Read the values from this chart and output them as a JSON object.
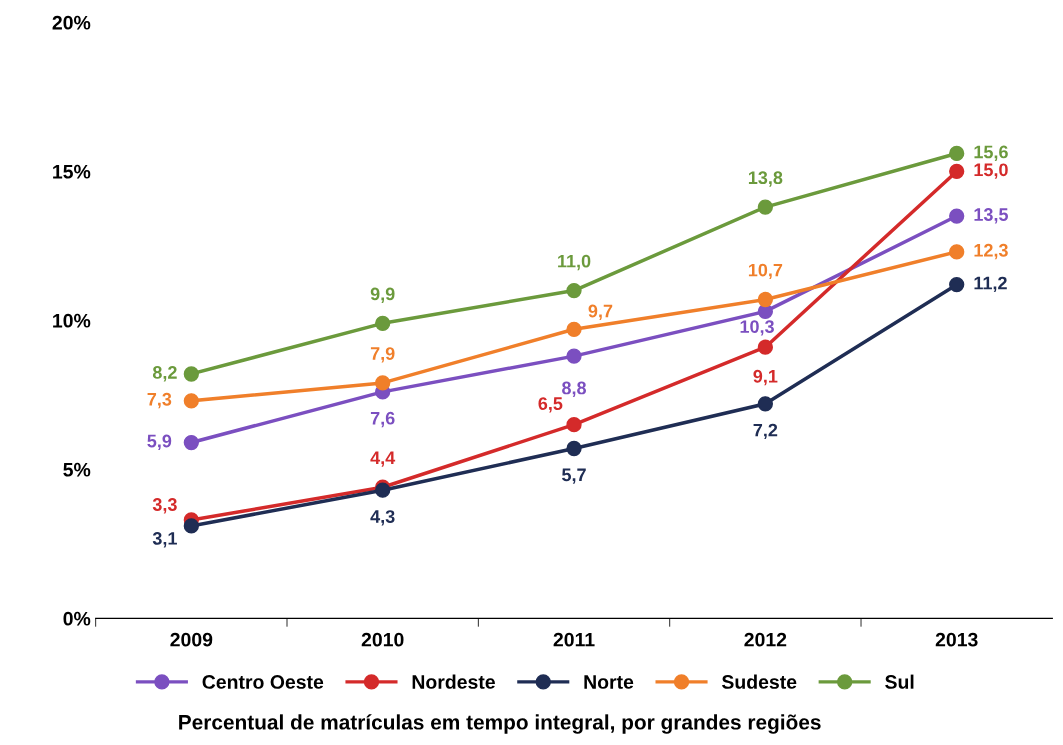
{
  "chart_data": {
    "type": "line",
    "title": "Percentual de matrículas em tempo integral, por grandes regiões",
    "categories": [
      "2009",
      "2010",
      "2011",
      "2012",
      "2013"
    ],
    "series": [
      {
        "name": "Centro Oeste",
        "color": "#7b4fc0",
        "values": [
          5.9,
          7.6,
          8.8,
          10.3,
          13.5
        ],
        "value_labels": [
          "5,9",
          "7,6",
          "8,8",
          "10,3",
          "13,5"
        ]
      },
      {
        "name": "Nordeste",
        "color": "#d42a2a",
        "values": [
          3.3,
          4.4,
          6.5,
          9.1,
          15.0
        ],
        "value_labels": [
          "3,3",
          "4,4",
          "6,5",
          "9,1",
          "15,0"
        ]
      },
      {
        "name": "Norte",
        "color": "#1f2d54",
        "values": [
          3.1,
          4.3,
          5.7,
          7.2,
          11.2
        ],
        "value_labels": [
          "3,1",
          "4,3",
          "5,7",
          "7,2",
          "11,2"
        ]
      },
      {
        "name": "Sudeste",
        "color": "#f07f2a",
        "values": [
          7.3,
          7.9,
          9.7,
          10.7,
          12.3
        ],
        "value_labels": [
          "7,3",
          "7,9",
          "9,7",
          "10,7",
          "12,3"
        ]
      },
      {
        "name": "Sul",
        "color": "#6b9a3c",
        "values": [
          8.2,
          9.9,
          11.0,
          13.8,
          15.6
        ],
        "value_labels": [
          "8,2",
          "9,9",
          "11,0",
          "13,8",
          "15,6"
        ]
      }
    ],
    "ylim": [
      0,
      20
    ],
    "yticks": [
      {
        "value": 0,
        "label": "0%"
      },
      {
        "value": 5,
        "label": "5%"
      },
      {
        "value": 10,
        "label": "10%"
      },
      {
        "value": 15,
        "label": "15%"
      },
      {
        "value": 20,
        "label": "20%"
      }
    ],
    "legend": "bottom",
    "marker": "circle",
    "line_style": "solid",
    "grid": false
  }
}
